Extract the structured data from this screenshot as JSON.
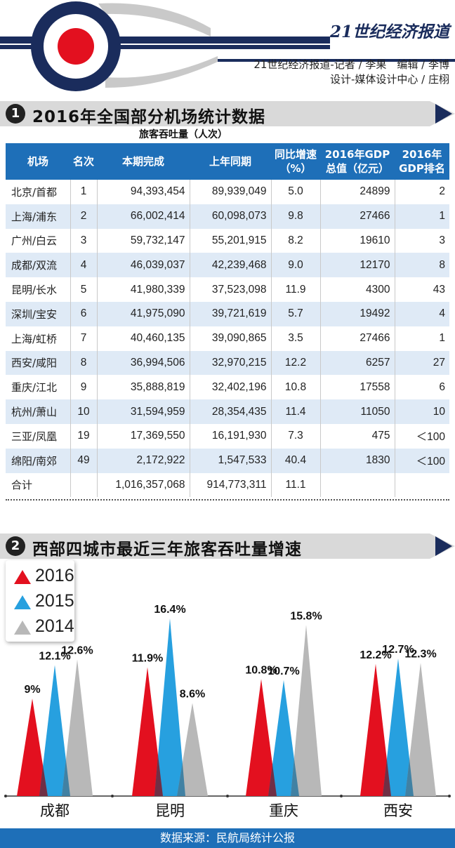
{
  "header": {
    "masthead": "21世纪经济报道",
    "credit_line1": "21世纪经济报道-记者 / 李果　编辑 / 李博",
    "credit_line2": "设计-媒体设计中心 / 庄栩"
  },
  "section1": {
    "number": "1",
    "title": "2016年全国部分机场统计数据"
  },
  "table": {
    "super_header": "旅客吞吐量（人次）",
    "headers": [
      "机场",
      "名次",
      "本期完成",
      "上年同期",
      "同比增速（%）",
      "2016年GDP总值（亿元）",
      "2016年GDP排名"
    ],
    "rows": [
      [
        "北京/首都",
        "1",
        "94,393,454",
        "89,939,049",
        "5.0",
        "24899",
        "2"
      ],
      [
        "上海/浦东",
        "2",
        "66,002,414",
        "60,098,073",
        "9.8",
        "27466",
        "1"
      ],
      [
        "广州/白云",
        "3",
        "59,732,147",
        "55,201,915",
        "8.2",
        "19610",
        "3"
      ],
      [
        "成都/双流",
        "4",
        "46,039,037",
        "42,239,468",
        "9.0",
        "12170",
        "8"
      ],
      [
        "昆明/长水",
        "5",
        "41,980,339",
        "37,523,098",
        "11.9",
        "4300",
        "43"
      ],
      [
        "深圳/宝安",
        "6",
        "41,975,090",
        "39,721,619",
        "5.7",
        "19492",
        "4"
      ],
      [
        "上海/虹桥",
        "7",
        "40,460,135",
        "39,090,865",
        "3.5",
        "27466",
        "1"
      ],
      [
        "西安/咸阳",
        "8",
        "36,994,506",
        "32,970,215",
        "12.2",
        "6257",
        "27"
      ],
      [
        "重庆/江北",
        "9",
        "35,888,819",
        "32,402,196",
        "10.8",
        "17558",
        "6"
      ],
      [
        "杭州/萧山",
        "10",
        "31,594,959",
        "28,354,435",
        "11.4",
        "11050",
        "10"
      ],
      [
        "三亚/凤凰",
        "19",
        "17,369,550",
        "16,191,930",
        "7.3",
        "475",
        "＜100"
      ],
      [
        "绵阳/南郊",
        "49",
        "2,172,922",
        "1,547,533",
        "40.4",
        "1830",
        "＜100"
      ],
      [
        "合计",
        "",
        "1,016,357,068",
        "914,773,311",
        "11.1",
        "",
        ""
      ]
    ]
  },
  "section2": {
    "number": "2",
    "title": "西部四城市最近三年旅客吞吐量增速"
  },
  "colors": {
    "s2016": "#e3101f",
    "s2015": "#27a0df",
    "s2014": "#b8b8b8",
    "navy": "#1a2c5c",
    "blue": "#1e6fb8"
  },
  "chart_data": {
    "type": "bar",
    "title": "西部四城市最近三年旅客吞吐量增速",
    "categories": [
      "成都",
      "昆明",
      "重庆",
      "西安"
    ],
    "series": [
      {
        "name": "2016",
        "values": [
          9,
          11.9,
          10.8,
          12.2
        ],
        "labels": [
          "9%",
          "11.9%",
          "10.8%",
          "12.2%"
        ]
      },
      {
        "name": "2015",
        "values": [
          12.1,
          16.4,
          10.7,
          12.7
        ],
        "labels": [
          "12.1%",
          "16.4%",
          "10.7%",
          "12.7%"
        ]
      },
      {
        "name": "2014",
        "values": [
          12.6,
          8.6,
          15.8,
          12.3
        ],
        "labels": [
          "12.6%",
          "8.6%",
          "15.8%",
          "12.3%"
        ]
      }
    ],
    "ylim": [
      0,
      18
    ],
    "legend": "top-left"
  },
  "footer": {
    "source": "数据来源：民航局统计公报"
  }
}
